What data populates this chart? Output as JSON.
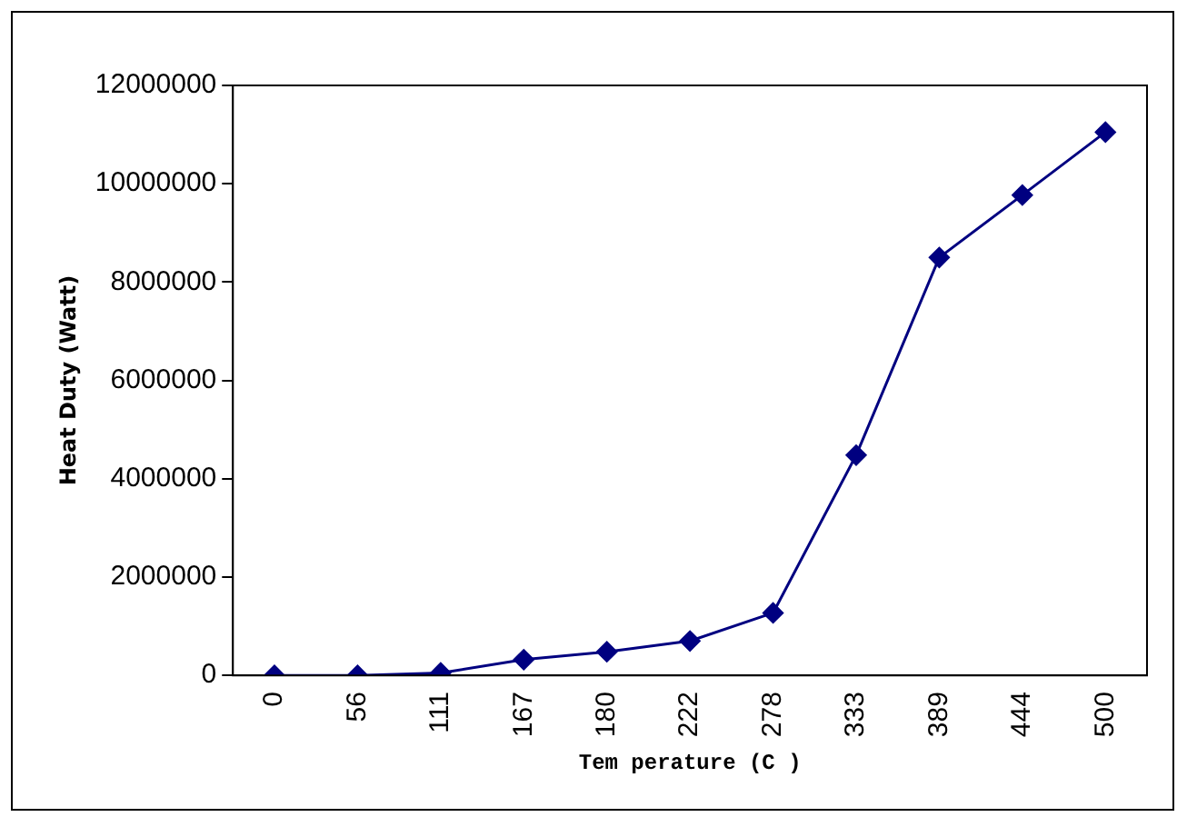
{
  "chart_data": {
    "type": "line",
    "xlabel": "Tem perature (C )",
    "ylabel": "Heat Duty (Watt)",
    "categories": [
      "0",
      "56",
      "111",
      "167",
      "180",
      "222",
      "278",
      "333",
      "389",
      "444",
      "500"
    ],
    "series": [
      {
        "color": "#000080",
        "values": [
          0,
          0,
          50000,
          320000,
          480000,
          700000,
          1270000,
          4480000,
          8500000,
          9770000,
          11050000
        ]
      }
    ],
    "ylim": [
      0,
      12000000
    ],
    "yticks": [
      0,
      2000000,
      4000000,
      6000000,
      8000000,
      10000000,
      12000000
    ],
    "grid": false,
    "legend": false,
    "marker": "diamond",
    "line_style": "solid"
  }
}
